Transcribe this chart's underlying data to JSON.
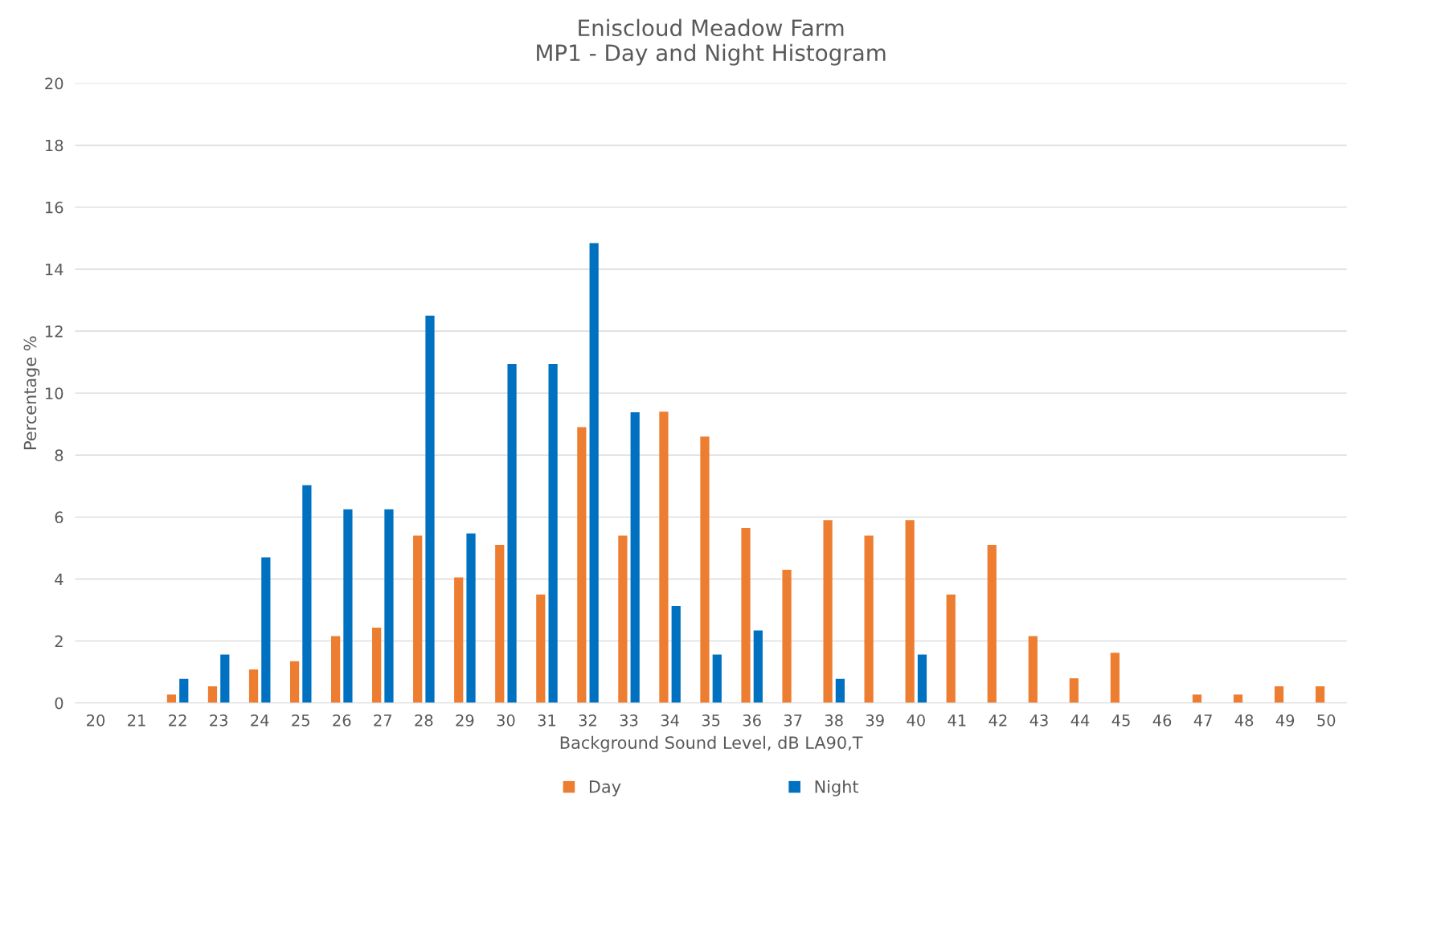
{
  "chart_data": {
    "type": "bar",
    "title": "Eniscloud Meadow Farm\nMP1 - Day and Night Histogram",
    "xlabel": "Background Sound Level, dB LA90,T",
    "ylabel": "Percentage %",
    "categories": [
      "20",
      "21",
      "22",
      "23",
      "24",
      "25",
      "26",
      "27",
      "28",
      "29",
      "30",
      "31",
      "32",
      "33",
      "34",
      "35",
      "36",
      "37",
      "38",
      "39",
      "40",
      "41",
      "42",
      "43",
      "44",
      "45",
      "46",
      "47",
      "48",
      "49",
      "50"
    ],
    "series": [
      {
        "name": "Day",
        "color": "#ed7d31",
        "values": [
          0,
          0,
          0.27,
          0.54,
          1.08,
          1.35,
          2.16,
          2.43,
          5.4,
          4.05,
          5.1,
          3.5,
          8.9,
          5.4,
          9.4,
          8.6,
          5.65,
          4.3,
          5.9,
          5.4,
          5.9,
          3.5,
          5.1,
          2.16,
          0.8,
          1.62,
          0,
          0.27,
          0.27,
          0.54,
          0.54
        ]
      },
      {
        "name": "Night",
        "color": "#0070c0",
        "values": [
          0,
          0,
          0.78,
          1.56,
          4.7,
          7.03,
          6.25,
          6.25,
          12.5,
          5.47,
          10.94,
          10.94,
          14.84,
          9.38,
          3.13,
          1.56,
          2.34,
          0,
          0.78,
          0,
          1.56,
          0,
          0,
          0,
          0,
          0,
          0,
          0,
          0,
          0,
          0
        ]
      }
    ],
    "ylim": [
      0,
      20
    ],
    "yticks": [
      0,
      2,
      4,
      6,
      8,
      10,
      12,
      14,
      16,
      18,
      20
    ],
    "grid": "y",
    "legend": "bottom"
  }
}
